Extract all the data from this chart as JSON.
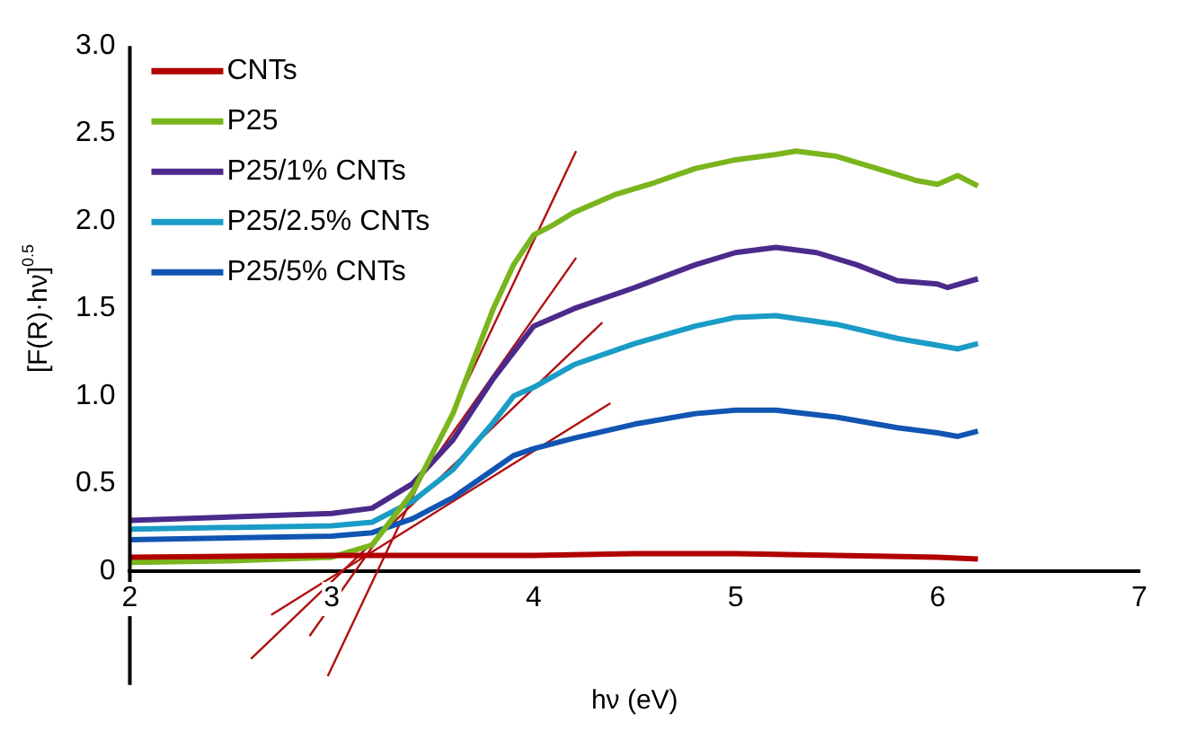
{
  "chart_data": {
    "type": "line",
    "xlabel": "hν (eV)",
    "ylabel": "[F(R)·hν]$^{0.5}$",
    "xlim": [
      2,
      7
    ],
    "xticks": [
      2,
      3,
      4,
      5,
      6,
      7
    ],
    "ylim": [
      -0.65,
      3
    ],
    "yticks": [
      0,
      0.5,
      {
        "value": 1,
        "label": "1.0"
      },
      1.5,
      {
        "value": 2,
        "label": "2.0"
      },
      2.5,
      {
        "value": 3,
        "label": "3.0"
      }
    ],
    "grid": false,
    "legend": "top left",
    "marker": "none",
    "line_style": "solid",
    "series": [
      {
        "name": "CNTs",
        "color": "#b00000",
        "x": [
          2,
          3,
          4,
          4.5,
          5,
          5.5,
          6,
          6.2
        ],
        "values": [
          0.08,
          0.09,
          0.09,
          0.1,
          0.1,
          0.09,
          0.08,
          0.07
        ]
      },
      {
        "name": "P25",
        "color": "#7ab51d",
        "x": [
          2,
          2.5,
          3,
          3.2,
          3.4,
          3.6,
          3.8,
          3.9,
          4.0,
          4.1,
          4.2,
          4.4,
          4.6,
          4.8,
          5.0,
          5.2,
          5.3,
          5.5,
          5.7,
          5.9,
          6.0,
          6.1,
          6.2
        ],
        "values": [
          0.05,
          0.06,
          0.08,
          0.15,
          0.45,
          0.9,
          1.5,
          1.75,
          1.92,
          1.98,
          2.05,
          2.15,
          2.22,
          2.3,
          2.35,
          2.38,
          2.4,
          2.37,
          2.3,
          2.23,
          2.21,
          2.26,
          2.2
        ]
      },
      {
        "name": "P25/1% CNTs",
        "color": "#4b2a8c",
        "x": [
          2,
          3,
          3.2,
          3.4,
          3.6,
          3.8,
          4.0,
          4.2,
          4.5,
          4.8,
          5.0,
          5.2,
          5.4,
          5.6,
          5.8,
          6.0,
          6.05,
          6.2
        ],
        "values": [
          0.29,
          0.33,
          0.36,
          0.5,
          0.75,
          1.1,
          1.4,
          1.5,
          1.62,
          1.75,
          1.82,
          1.85,
          1.82,
          1.75,
          1.66,
          1.64,
          1.62,
          1.67
        ]
      },
      {
        "name": "P25/2.5% CNTs",
        "color": "#1a9cc6",
        "x": [
          2,
          3,
          3.2,
          3.4,
          3.6,
          3.8,
          3.9,
          4.0,
          4.2,
          4.5,
          4.8,
          5.0,
          5.2,
          5.5,
          5.8,
          6.0,
          6.1,
          6.2
        ],
        "values": [
          0.24,
          0.26,
          0.28,
          0.4,
          0.58,
          0.85,
          1.0,
          1.05,
          1.18,
          1.3,
          1.4,
          1.45,
          1.46,
          1.41,
          1.33,
          1.29,
          1.27,
          1.3
        ]
      },
      {
        "name": "P25/5% CNTs",
        "color": "#1155b3",
        "x": [
          2,
          3,
          3.2,
          3.4,
          3.6,
          3.8,
          3.9,
          4.0,
          4.2,
          4.5,
          4.8,
          5.0,
          5.2,
          5.5,
          5.8,
          6.0,
          6.1,
          6.2
        ],
        "values": [
          0.18,
          0.2,
          0.22,
          0.3,
          0.42,
          0.58,
          0.66,
          0.7,
          0.76,
          0.84,
          0.9,
          0.92,
          0.92,
          0.88,
          0.82,
          0.79,
          0.77,
          0.8
        ]
      },
      {
        "color": "#b01010",
        "x": [
          2.98,
          4.21
        ],
        "values": [
          -0.6,
          2.4
        ]
      },
      {
        "color": "#b01010",
        "x": [
          2.89,
          4.21
        ],
        "values": [
          -0.37,
          1.79
        ]
      },
      {
        "color": "#b01010",
        "x": [
          2.6,
          4.34
        ],
        "values": [
          -0.5,
          1.42
        ]
      },
      {
        "color": "#b01010",
        "x": [
          2.7,
          4.38
        ],
        "values": [
          -0.25,
          0.96
        ]
      }
    ]
  }
}
